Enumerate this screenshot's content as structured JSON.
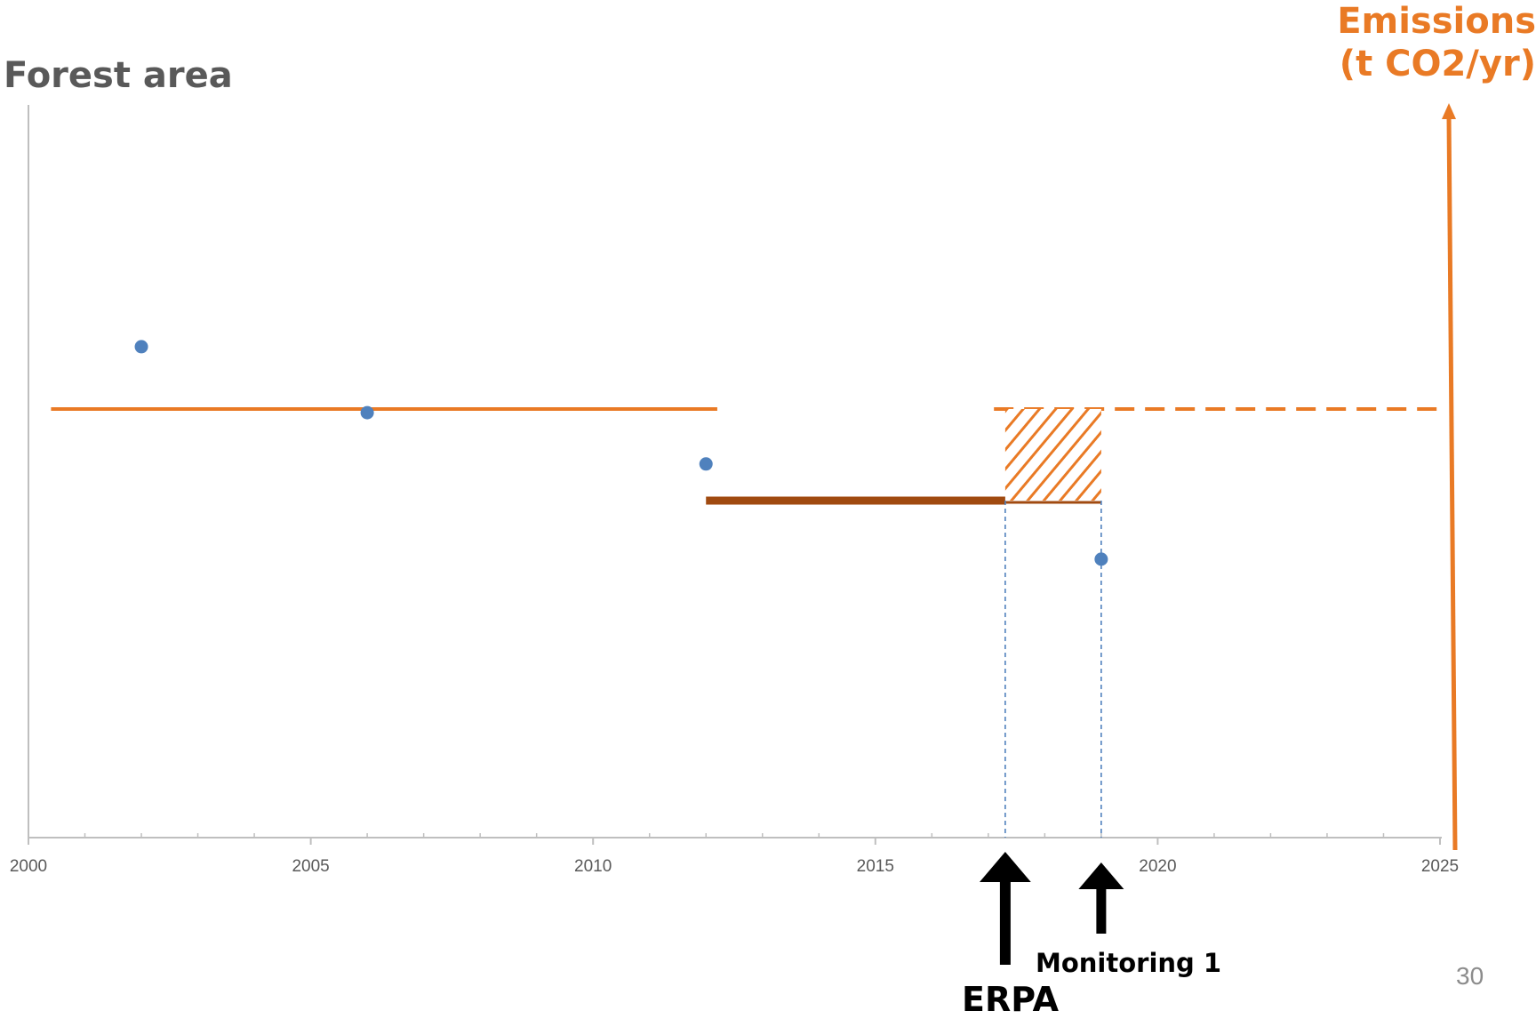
{
  "chart_data": {
    "type": "scatter",
    "title": "",
    "ylabel": "Forest area",
    "secondary_ylabel_lines": [
      "Emissions",
      "(t CO2/yr)"
    ],
    "xlabel": "",
    "xlim": [
      2000,
      2025
    ],
    "x_ticks": [
      "2000",
      "2005",
      "2010",
      "2015",
      "2020",
      "2025"
    ],
    "y_ticks": [],
    "points": [
      {
        "x": 2002.0,
        "y": 0.67
      },
      {
        "x": 2006.0,
        "y": 0.58
      },
      {
        "x": 2012.0,
        "y": 0.51
      },
      {
        "x": 2019.0,
        "y": 0.38
      }
    ],
    "reference_level": {
      "x": [
        2000.4,
        2012.2
      ],
      "y": 0.585,
      "color": "#e97a25"
    },
    "reference_level_projection": {
      "x": [
        2017.1,
        2025.0
      ],
      "y": 0.585,
      "style": "dashed",
      "color": "#e97a25"
    },
    "emissions_result": {
      "x": [
        2012.0,
        2019.0
      ],
      "y": 0.46,
      "color": "#a04a10"
    },
    "emission_reduction_area": {
      "x": [
        2017.3,
        2019.0
      ],
      "y": [
        0.46,
        0.585
      ],
      "pattern": "hatched",
      "color": "#e97a25"
    },
    "vertical_markers": [
      {
        "x": 2017.3
      },
      {
        "x": 2019.0
      }
    ],
    "grid": false,
    "legend": "none",
    "colors": {
      "points": "#4f81bd",
      "axis": "#bfbfbf",
      "accent": "#e97a25",
      "dark_orange": "#a04a10",
      "arrow": "#000000"
    }
  },
  "annotations": {
    "erpa_label": "ERPA",
    "monitoring_label": "Monitoring 1",
    "erpa_x": 2017.3,
    "monitoring_x": 2019.0
  },
  "page_number": "30"
}
